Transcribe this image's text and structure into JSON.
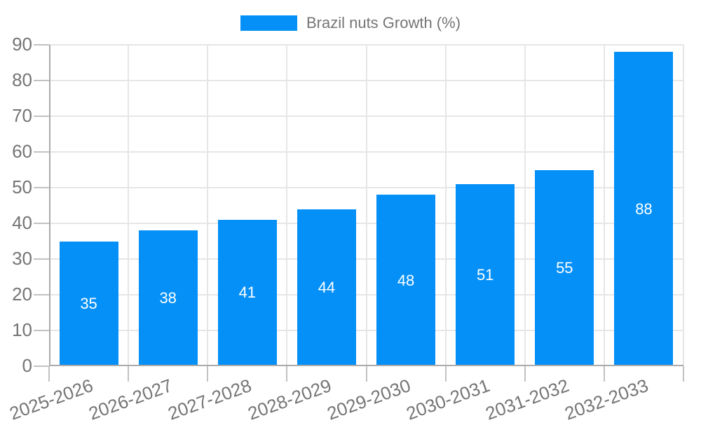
{
  "legend": {
    "label": "Brazil nuts Growth (%)"
  },
  "chart_data": {
    "type": "bar",
    "title": "Brazil nuts Growth (%)",
    "series_name": "Brazil nuts Growth (%)",
    "categories": [
      "2025-2026",
      "2026-2027",
      "2027-2028",
      "2028-2029",
      "2029-2030",
      "2030-2031",
      "2031-2032",
      "2032-2033"
    ],
    "values": [
      35,
      38,
      41,
      44,
      48,
      51,
      55,
      88
    ],
    "value_labels_shown": true,
    "xlabel": "",
    "ylabel": "",
    "ylim": [
      0,
      90
    ],
    "yticks": [
      0,
      10,
      20,
      30,
      40,
      50,
      60,
      70,
      80,
      90
    ],
    "grid": true,
    "legend_position": "top-center",
    "x_label_rotation_deg": -20,
    "bar_color": "#0590f8",
    "value_label_color": "#ffffff",
    "axis_text_color": "#757575"
  }
}
